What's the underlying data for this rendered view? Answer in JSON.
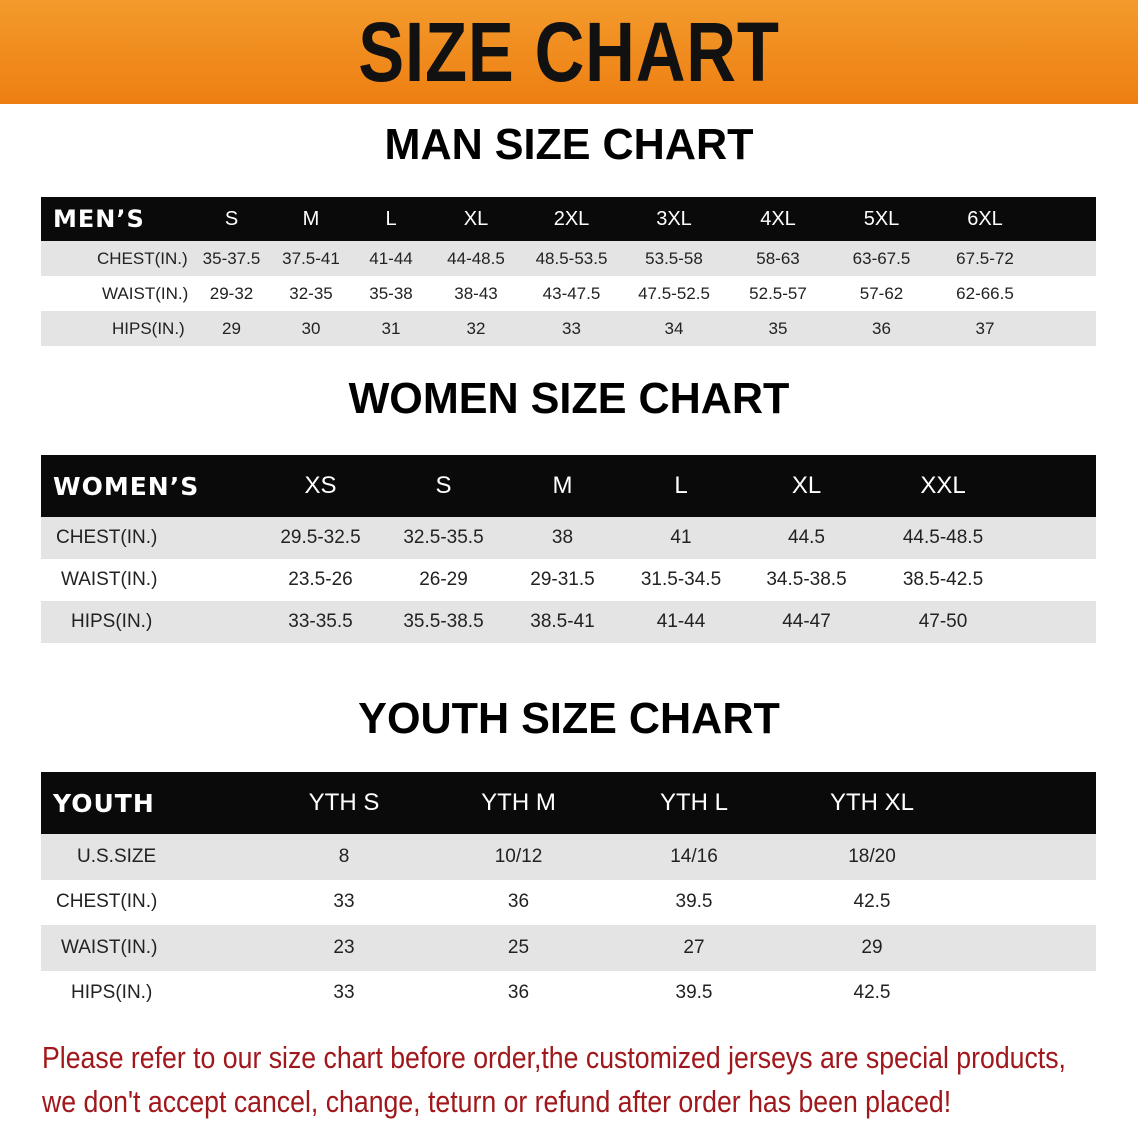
{
  "banner_title": "SIZE CHART",
  "accent_color": "#ee8418",
  "note_color": "#a0181c",
  "men": {
    "section_title": "MAN SIZE CHART",
    "header": [
      "MEN’S",
      "S",
      "M",
      "L",
      "XL",
      "2XL",
      "3XL",
      "4XL",
      "5XL",
      "6XL"
    ],
    "rows": [
      [
        "CHEST(IN.)",
        "35-37.5",
        "37.5-41",
        "41-44",
        "44-48.5",
        "48.5-53.5",
        "53.5-58",
        "58-63",
        "63-67.5",
        "67.5-72"
      ],
      [
        "WAIST(IN.)",
        "29-32",
        "32-35",
        "35-38",
        "38-43",
        "43-47.5",
        "47.5-52.5",
        "52.5-57",
        "57-62",
        "62-66.5"
      ],
      [
        "HIPS(IN.)",
        "29",
        "30",
        "31",
        "32",
        "33",
        "34",
        "35",
        "36",
        "37"
      ]
    ]
  },
  "women": {
    "section_title": "WOMEN SIZE CHART",
    "header": [
      "WOMEN’S",
      "XS",
      "S",
      "M",
      "L",
      "XL",
      "XXL"
    ],
    "rows": [
      [
        "CHEST(IN.)",
        "29.5-32.5",
        "32.5-35.5",
        "38",
        "41",
        "44.5",
        "44.5-48.5"
      ],
      [
        "WAIST(IN.)",
        "23.5-26",
        "26-29",
        "29-31.5",
        "31.5-34.5",
        "34.5-38.5",
        "38.5-42.5"
      ],
      [
        "HIPS(IN.)",
        "33-35.5",
        "35.5-38.5",
        "38.5-41",
        "41-44",
        "44-47",
        "47-50"
      ]
    ]
  },
  "youth": {
    "section_title": "YOUTH SIZE CHART",
    "header": [
      "YOUTH",
      "YTH S",
      "YTH M",
      "YTH L",
      "YTH XL"
    ],
    "rows": [
      [
        "U.S.SIZE",
        "8",
        "10/12",
        "14/16",
        "18/20"
      ],
      [
        "CHEST(IN.)",
        "33",
        "36",
        "39.5",
        "42.5"
      ],
      [
        "WAIST(IN.)",
        "23",
        "25",
        "27",
        "29"
      ],
      [
        "HIPS(IN.)",
        "33",
        "36",
        "39.5",
        "42.5"
      ]
    ]
  },
  "note": {
    "line1": "Please refer to our size chart before order,the customized jerseys are special products,",
    "line2": "we don't accept cancel, change, teturn or refund after order has been placed!"
  }
}
